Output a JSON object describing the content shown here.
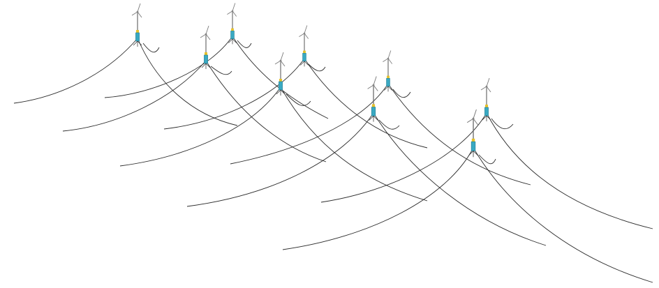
{
  "scene": {
    "description_visible_text": "",
    "units": [
      {
        "id": "turbine-1"
      },
      {
        "id": "turbine-2"
      },
      {
        "id": "turbine-3"
      },
      {
        "id": "turbine-4"
      },
      {
        "id": "turbine-5"
      },
      {
        "id": "turbine-6"
      },
      {
        "id": "turbine-7"
      },
      {
        "id": "turbine-8"
      },
      {
        "id": "turbine-9"
      }
    ],
    "colors": {
      "background": "#ffffff",
      "mooring_line": "#2b2b2b",
      "spar_body": "#3aa9c2",
      "accent_band": "#e6c12a",
      "tower": "#6a6a6a"
    },
    "icons": [
      "floating-wind-turbine-icon",
      "mooring-line-icon"
    ]
  }
}
